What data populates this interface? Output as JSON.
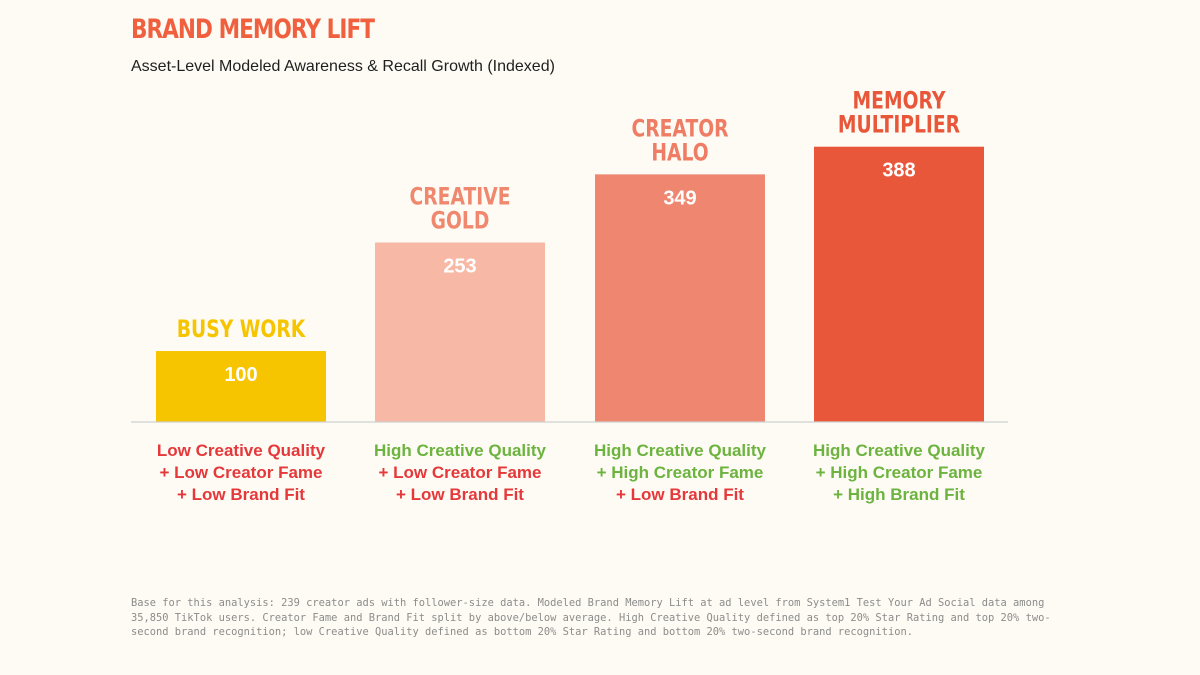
{
  "title": "BRAND MEMORY LIFT",
  "subtitle": "Asset-Level Modeled Awareness & Recall Growth (Indexed)",
  "chart_data": {
    "type": "bar",
    "categories": [
      "BUSY WORK",
      "CREATIVE GOLD",
      "CREATOR HALO",
      "MEMORY MULTIPLIER"
    ],
    "values": [
      100,
      253,
      349,
      388
    ],
    "ylim": [
      0,
      420
    ],
    "grid": false,
    "bar_colors": [
      "#f7c400",
      "#f7b9a6",
      "#ef8670",
      "#e9573b"
    ],
    "category_label_colors": [
      "#f7c400",
      "#f0886f",
      "#ef7d65",
      "#e9573b"
    ],
    "value_label_color": "#ffffff",
    "descriptions": [
      [
        {
          "text": "Low Creative Quality",
          "color": "#e5383b"
        },
        {
          "text": "+ Low Creator Fame",
          "color": "#e5383b"
        },
        {
          "text": "+ Low Brand Fit",
          "color": "#e5383b"
        }
      ],
      [
        {
          "text": "High Creative Quality",
          "color": "#6cb33f"
        },
        {
          "text": "+ Low Creator Fame",
          "color": "#e5383b"
        },
        {
          "text": "+ Low Brand Fit",
          "color": "#e5383b"
        }
      ],
      [
        {
          "text": "High Creative Quality",
          "color": "#6cb33f"
        },
        {
          "text": "+ High Creator Fame",
          "color": "#6cb33f"
        },
        {
          "text": "+ Low Brand Fit",
          "color": "#e5383b"
        }
      ],
      [
        {
          "text": "High Creative Quality",
          "color": "#6cb33f"
        },
        {
          "text": "+ High Creator Fame",
          "color": "#6cb33f"
        },
        {
          "text": "+ High Brand Fit",
          "color": "#6cb33f"
        }
      ]
    ]
  },
  "footnote": "Base for this analysis: 239 creator ads with follower-size data. Modeled Brand Memory Lift at ad level from System1 Test Your Ad Social data among 35,850 TikTok users. Creator Fame and Brand Fit split by above/below average. High Creative Quality defined as top 20% Star Rating and top 20% two-second brand recognition; low Creative Quality defined as bottom 20% Star Rating and bottom 20% two-second brand recognition."
}
